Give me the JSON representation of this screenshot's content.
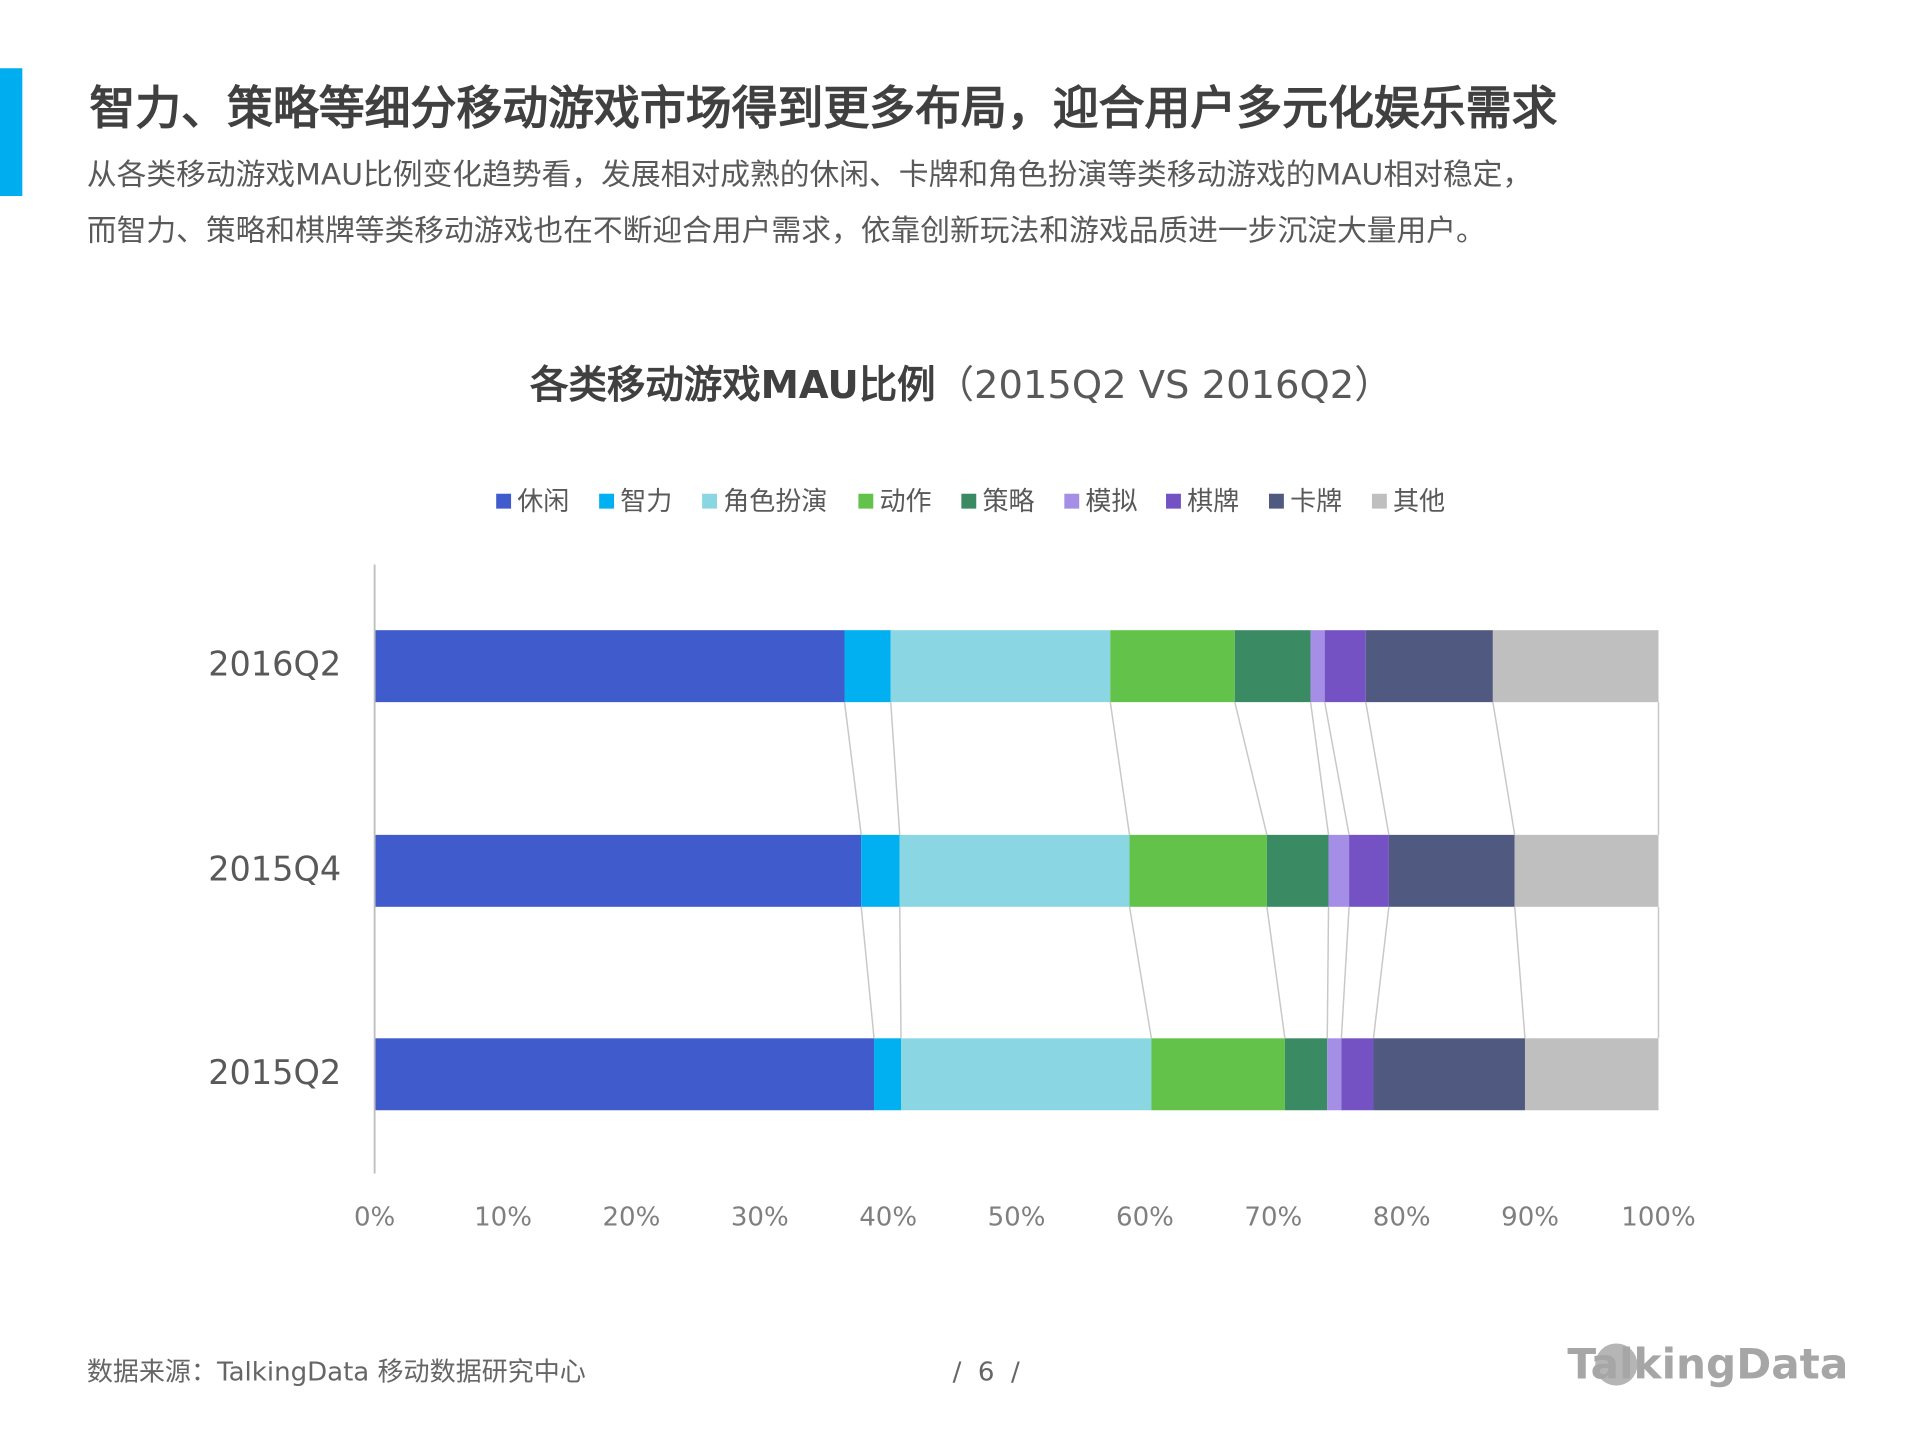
{
  "header": {
    "title": "智力、策略等细分移动游戏市场得到更多布局，迎合用户多元化娱乐需求",
    "description": [
      "从各类移动游戏MAU比例变化趋势看，发展相对成熟的休闲、卡牌和角色扮演等类移动游戏的MAU相对稳定，",
      "而智力、策略和棋牌等类移动游戏也在不断迎合用户需求，依靠创新玩法和游戏品质进一步沉淀大量用户。"
    ]
  },
  "chart_data": {
    "type": "stacked-barh",
    "title": "各类移动游戏MAU比例",
    "title_note": "（2015Q2 VS 2016Q2）",
    "categories": [
      "2016Q2",
      "2015Q4",
      "2015Q2"
    ],
    "series": [
      {
        "name": "休闲",
        "color": "#3f5bcc",
        "values": [
          36.6,
          37.9,
          38.9
        ]
      },
      {
        "name": "智力",
        "color": "#00b0f0",
        "values": [
          3.6,
          3.0,
          2.1
        ]
      },
      {
        "name": "角色扮演",
        "color": "#8bd6e3",
        "values": [
          17.1,
          17.9,
          19.5
        ]
      },
      {
        "name": "动作",
        "color": "#63c24a",
        "values": [
          9.7,
          10.7,
          10.4
        ]
      },
      {
        "name": "策略",
        "color": "#3a8a64",
        "values": [
          5.9,
          4.8,
          3.3
        ]
      },
      {
        "name": "模拟",
        "color": "#a58ee6",
        "values": [
          1.1,
          1.6,
          1.1
        ]
      },
      {
        "name": "棋牌",
        "color": "#7452c4",
        "values": [
          3.2,
          3.1,
          2.5
        ]
      },
      {
        "name": "卡牌",
        "color": "#505a80",
        "values": [
          9.9,
          9.8,
          11.8
        ]
      },
      {
        "name": "其他",
        "color": "#bfbfbf",
        "values": [
          12.9,
          11.2,
          10.4
        ]
      }
    ],
    "xlim": [
      0,
      100
    ],
    "xticks": [
      {
        "value": 0,
        "label": "0%"
      },
      {
        "value": 10,
        "label": "10%"
      },
      {
        "value": 20,
        "label": "20%"
      },
      {
        "value": 30,
        "label": "30%"
      },
      {
        "value": 40,
        "label": "40%"
      },
      {
        "value": 50,
        "label": "50%"
      },
      {
        "value": 60,
        "label": "60%"
      },
      {
        "value": 70,
        "label": "70%"
      },
      {
        "value": 80,
        "label": "80%"
      },
      {
        "value": 90,
        "label": "90%"
      },
      {
        "value": 100,
        "label": "100%"
      }
    ],
    "legend": "top"
  },
  "footer": {
    "source": "数据来源：TalkingData  移动数据研究中心",
    "page": "/  6  /",
    "logo": "TalkingData"
  }
}
